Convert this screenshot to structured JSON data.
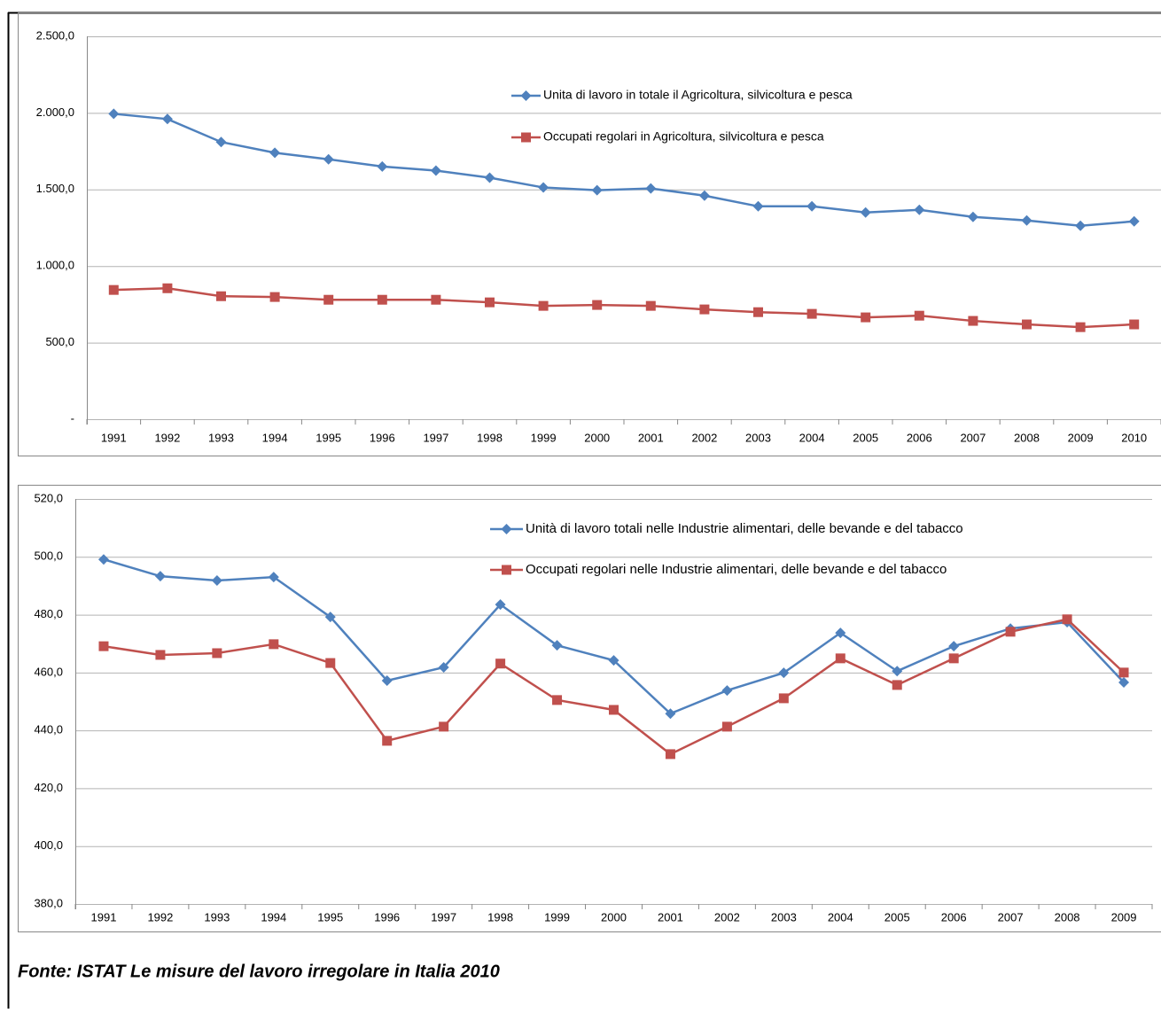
{
  "chart_data": [
    {
      "type": "line",
      "categories": [
        "1991",
        "1992",
        "1993",
        "1994",
        "1995",
        "1996",
        "1997",
        "1998",
        "1999",
        "2000",
        "2001",
        "2002",
        "2003",
        "2004",
        "2005",
        "2006",
        "2007",
        "2008",
        "2009",
        "2010"
      ],
      "series": [
        {
          "name": "Unita di lavoro in totale il Agricoltura, silvicoltura e pesca",
          "color": "#4f81bd",
          "marker": "diamond",
          "values": [
            1994,
            1960,
            1810,
            1740,
            1697,
            1650,
            1623,
            1577,
            1513,
            1495,
            1507,
            1460,
            1390,
            1390,
            1350,
            1367,
            1321,
            1298,
            1263,
            1292
          ]
        },
        {
          "name": "Occupati regolari in Agricoltura, silvicoltura e pesca",
          "color": "#c0504d",
          "marker": "square",
          "values": [
            844,
            855,
            803,
            798,
            780,
            780,
            780,
            763,
            740,
            746,
            740,
            717,
            699,
            688,
            665,
            676,
            642,
            619,
            601,
            619
          ]
        }
      ],
      "ylim": [
        0,
        2500
      ],
      "yticks": [
        {
          "value": 0,
          "label": "-"
        },
        {
          "value": 500,
          "label": "500,0"
        },
        {
          "value": 1000,
          "label": "1.000,0"
        },
        {
          "value": 1500,
          "label": "1.500,0"
        },
        {
          "value": 2000,
          "label": "2.000,0"
        },
        {
          "value": 2500,
          "label": "2.500,0"
        }
      ],
      "grid": true
    },
    {
      "type": "line",
      "categories": [
        "1991",
        "1992",
        "1993",
        "1994",
        "1995",
        "1996",
        "1997",
        "1998",
        "1999",
        "2000",
        "2001",
        "2002",
        "2003",
        "2004",
        "2005",
        "2006",
        "2007",
        "2008",
        "2009"
      ],
      "series": [
        {
          "name": "Unità di lavoro totali nelle Industrie alimentari, delle bevande e del tabacco",
          "color": "#4f81bd",
          "marker": "diamond",
          "values": [
            499.1,
            493.3,
            491.8,
            493.0,
            479.2,
            457.2,
            461.8,
            483.5,
            469.4,
            464.2,
            445.8,
            453.8,
            459.9,
            473.7,
            460.5,
            469.1,
            475.2,
            477.4,
            456.6
          ]
        },
        {
          "name": "Occupati regolari nelle Industrie alimentari, delle bevande e del tabacco",
          "color": "#c0504d",
          "marker": "square",
          "values": [
            469.1,
            466.1,
            466.7,
            469.8,
            463.3,
            436.4,
            441.3,
            463.1,
            450.5,
            447.1,
            431.8,
            441.3,
            451.1,
            464.9,
            455.7,
            464.9,
            474.1,
            478.4,
            460.0
          ]
        }
      ],
      "ylim": [
        380,
        520
      ],
      "yticks": [
        {
          "value": 380,
          "label": "380,0"
        },
        {
          "value": 400,
          "label": "400,0"
        },
        {
          "value": 420,
          "label": "420,0"
        },
        {
          "value": 440,
          "label": "440,0"
        },
        {
          "value": 460,
          "label": "460,0"
        },
        {
          "value": 480,
          "label": "480,0"
        },
        {
          "value": 500,
          "label": "500,0"
        },
        {
          "value": 520,
          "label": "520,0"
        }
      ],
      "grid": true
    }
  ],
  "source": "Fonte: ISTAT Le misure del lavoro irregolare in Italia 2010"
}
